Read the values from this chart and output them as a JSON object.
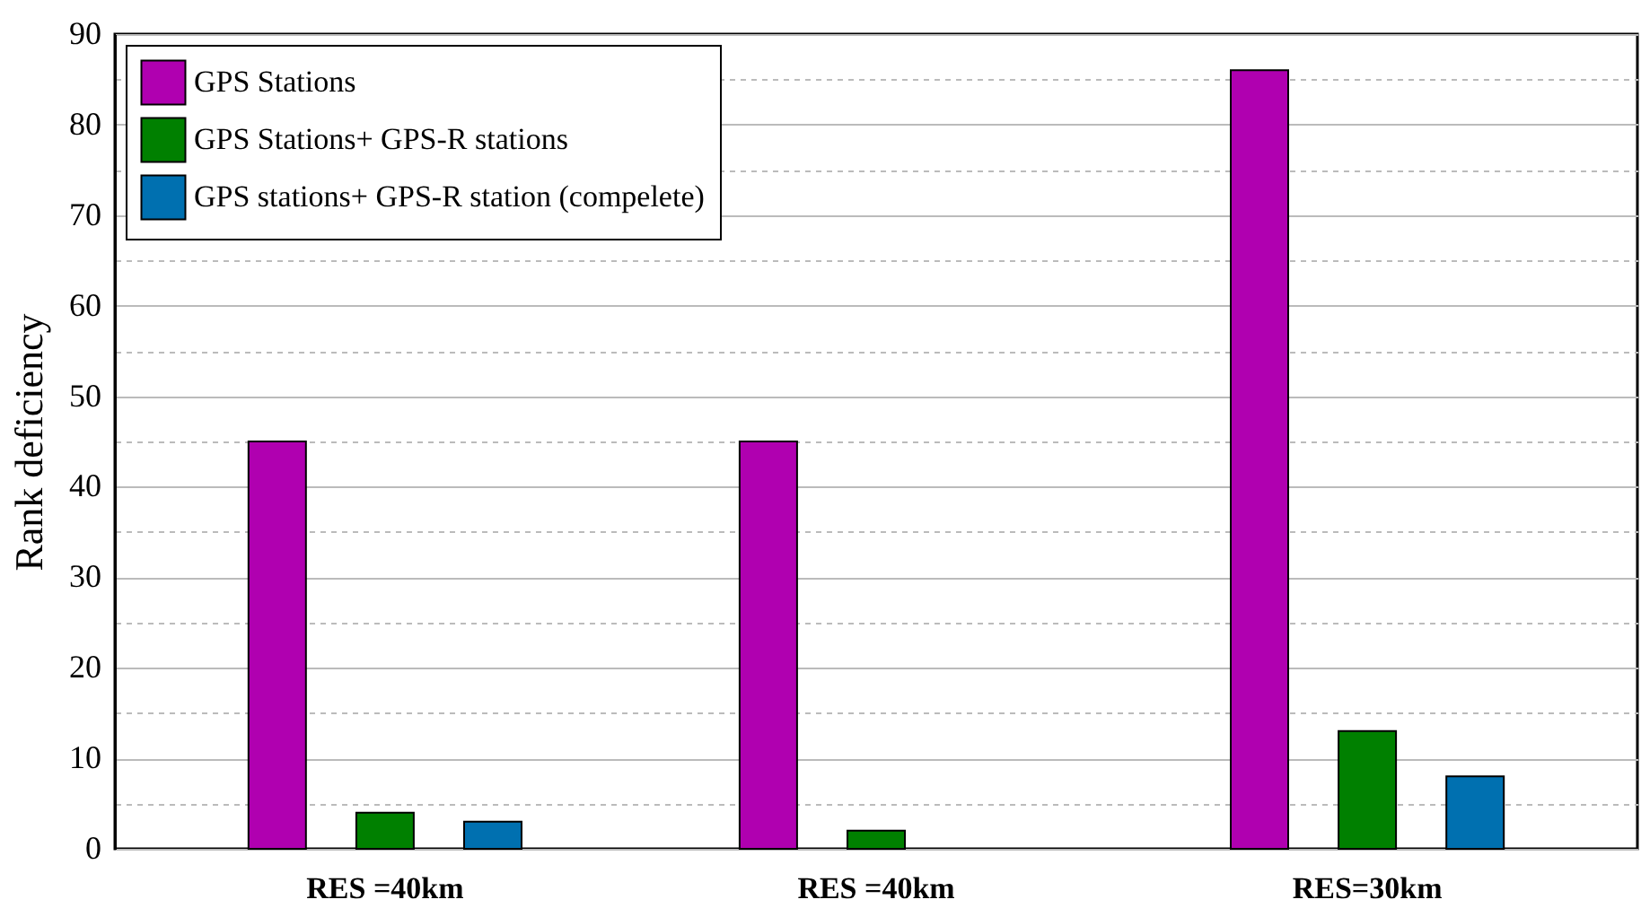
{
  "chart_data": {
    "type": "bar",
    "ylabel": "Rank deficiency",
    "categories": [
      "RES =40km",
      "RES =40km",
      "RES=30km"
    ],
    "series": [
      {
        "name": "GPS Stations",
        "color": "#b000b0",
        "values": [
          45,
          45,
          86
        ]
      },
      {
        "name": "GPS Stations+ GPS-R stations",
        "color": "#008000",
        "values": [
          4,
          2,
          13
        ]
      },
      {
        "name": "GPS stations+ GPS-R station (compelete)",
        "color": "#0070b0",
        "values": [
          3,
          null,
          8
        ]
      }
    ],
    "ylim": [
      0,
      90
    ],
    "yticks": [
      0,
      {
        "value": 5,
        "label": null
      },
      10,
      {
        "value": 15,
        "label": null
      },
      20,
      {
        "value": 25,
        "label": null
      },
      30,
      {
        "value": 35,
        "label": null
      },
      40,
      {
        "value": 45,
        "label": null
      },
      50,
      {
        "value": 55,
        "label": null
      },
      60,
      {
        "value": 65,
        "label": null
      },
      70,
      {
        "value": 75,
        "label": null
      },
      80,
      {
        "value": 85,
        "label": null
      },
      90
    ],
    "grid": "y",
    "legend": "top left"
  }
}
